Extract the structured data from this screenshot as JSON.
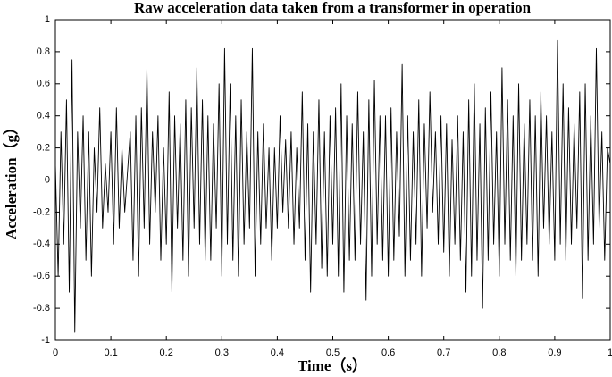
{
  "chart_data": {
    "type": "line",
    "title": "Raw acceleration data taken from a transformer in operation",
    "xlabel": "Time（s）",
    "ylabel": "Acceleration（g）",
    "xlim": [
      0,
      1
    ],
    "ylim": [
      -1,
      1
    ],
    "xticks": [
      0,
      0.1,
      0.2,
      0.3,
      0.4,
      0.5,
      0.6,
      0.7,
      0.8,
      0.9,
      1
    ],
    "yticks": [
      -1,
      -0.8,
      -0.6,
      -0.4,
      -0.2,
      0,
      0.2,
      0.4,
      0.6,
      0.8,
      1
    ],
    "grid": false,
    "x": [
      0,
      0.005,
      0.01,
      0.015,
      0.02,
      0.025,
      0.03,
      0.035,
      0.04,
      0.045,
      0.05,
      0.055,
      0.06,
      0.065,
      0.07,
      0.075,
      0.08,
      0.085,
      0.09,
      0.095,
      0.1,
      0.105,
      0.11,
      0.115,
      0.12,
      0.125,
      0.13,
      0.135,
      0.14,
      0.145,
      0.15,
      0.155,
      0.16,
      0.165,
      0.17,
      0.175,
      0.18,
      0.185,
      0.19,
      0.195,
      0.2,
      0.205,
      0.21,
      0.215,
      0.22,
      0.225,
      0.23,
      0.235,
      0.24,
      0.245,
      0.25,
      0.255,
      0.26,
      0.265,
      0.27,
      0.275,
      0.28,
      0.285,
      0.29,
      0.295,
      0.3,
      0.305,
      0.31,
      0.315,
      0.32,
      0.325,
      0.33,
      0.335,
      0.34,
      0.345,
      0.35,
      0.355,
      0.36,
      0.365,
      0.37,
      0.375,
      0.38,
      0.385,
      0.39,
      0.395,
      0.4,
      0.405,
      0.41,
      0.415,
      0.42,
      0.425,
      0.43,
      0.435,
      0.44,
      0.445,
      0.45,
      0.455,
      0.46,
      0.465,
      0.47,
      0.475,
      0.48,
      0.485,
      0.49,
      0.495,
      0.5,
      0.505,
      0.51,
      0.515,
      0.52,
      0.525,
      0.53,
      0.535,
      0.54,
      0.545,
      0.55,
      0.555,
      0.56,
      0.565,
      0.57,
      0.575,
      0.58,
      0.585,
      0.59,
      0.595,
      0.6,
      0.605,
      0.61,
      0.615,
      0.62,
      0.625,
      0.63,
      0.635,
      0.64,
      0.645,
      0.65,
      0.655,
      0.66,
      0.665,
      0.67,
      0.675,
      0.68,
      0.685,
      0.69,
      0.695,
      0.7,
      0.705,
      0.71,
      0.715,
      0.72,
      0.725,
      0.73,
      0.735,
      0.74,
      0.745,
      0.75,
      0.755,
      0.76,
      0.765,
      0.77,
      0.775,
      0.78,
      0.785,
      0.79,
      0.795,
      0.8,
      0.805,
      0.81,
      0.815,
      0.82,
      0.825,
      0.83,
      0.835,
      0.84,
      0.845,
      0.85,
      0.855,
      0.86,
      0.865,
      0.87,
      0.875,
      0.88,
      0.885,
      0.89,
      0.895,
      0.9,
      0.905,
      0.91,
      0.915,
      0.92,
      0.925,
      0.93,
      0.935,
      0.94,
      0.945,
      0.95,
      0.955,
      0.96,
      0.965,
      0.97,
      0.975,
      0.98,
      0.985,
      0.99,
      0.995,
      1
    ],
    "series": [
      {
        "name": "Acceleration",
        "color": "#000000",
        "values": [
          0.1,
          -0.6,
          0.3,
          -0.4,
          0.5,
          -0.7,
          0.75,
          -0.95,
          0.3,
          -0.3,
          0.4,
          -0.5,
          0.3,
          -0.6,
          0.2,
          -0.2,
          0.45,
          -0.3,
          0.1,
          -0.2,
          0.3,
          -0.4,
          0.45,
          -0.3,
          0.2,
          -0.2,
          0.05,
          0.3,
          -0.5,
          0.4,
          -0.6,
          0.45,
          -0.3,
          0.7,
          -0.4,
          0.3,
          -0.2,
          0.4,
          -0.5,
          0.2,
          -0.4,
          0.55,
          -0.7,
          0.4,
          -0.3,
          0.35,
          -0.5,
          0.5,
          -0.6,
          0.45,
          -0.3,
          0.7,
          -0.4,
          0.5,
          -0.5,
          0.4,
          -0.5,
          0.35,
          -0.3,
          0.6,
          -0.6,
          0.82,
          -0.4,
          0.6,
          -0.5,
          0.4,
          -0.6,
          0.5,
          -0.4,
          0.3,
          -0.3,
          0.82,
          -0.6,
          0.3,
          -0.4,
          0.35,
          -0.3,
          0.2,
          -0.5,
          0.2,
          -0.3,
          0.4,
          -0.2,
          0.25,
          -0.3,
          0.3,
          -0.4,
          0.2,
          -0.3,
          0.55,
          -0.5,
          0.35,
          -0.7,
          0.3,
          -0.4,
          0.5,
          -0.55,
          0.3,
          -0.6,
          0.4,
          -0.4,
          0.45,
          -0.6,
          0.6,
          -0.7,
          0.4,
          -0.5,
          0.35,
          -0.5,
          0.55,
          -0.4,
          0.3,
          -0.75,
          0.5,
          -0.6,
          0.62,
          -0.4,
          0.4,
          -0.5,
          0.4,
          -0.6,
          0.45,
          -0.5,
          0.3,
          -0.35,
          0.72,
          -0.6,
          0.4,
          -0.5,
          0.3,
          -0.4,
          0.5,
          -0.6,
          0.35,
          -0.3,
          0.55,
          -0.2,
          0.3,
          -0.4,
          0.4,
          -0.45,
          0.35,
          -0.6,
          0.25,
          -0.4,
          0.4,
          -0.5,
          0.3,
          -0.7,
          0.5,
          -0.6,
          0.6,
          -0.5,
          0.35,
          -0.8,
          0.45,
          -0.5,
          0.55,
          -0.4,
          0.3,
          -0.6,
          0.7,
          -0.4,
          0.5,
          -0.5,
          0.4,
          -0.6,
          0.6,
          -0.5,
          0.35,
          -0.4,
          0.5,
          -0.5,
          0.4,
          -0.6,
          0.55,
          -0.3,
          0.4,
          -0.4,
          0.3,
          -0.5,
          0.87,
          -0.4,
          0.6,
          -0.5,
          0.45,
          -0.4,
          0.35,
          -0.3,
          0.55,
          -0.74,
          0.6,
          -0.5,
          0.4,
          -0.4,
          0.82,
          -0.3,
          0.3,
          -0.5,
          0.2,
          0.1
        ]
      }
    ]
  }
}
